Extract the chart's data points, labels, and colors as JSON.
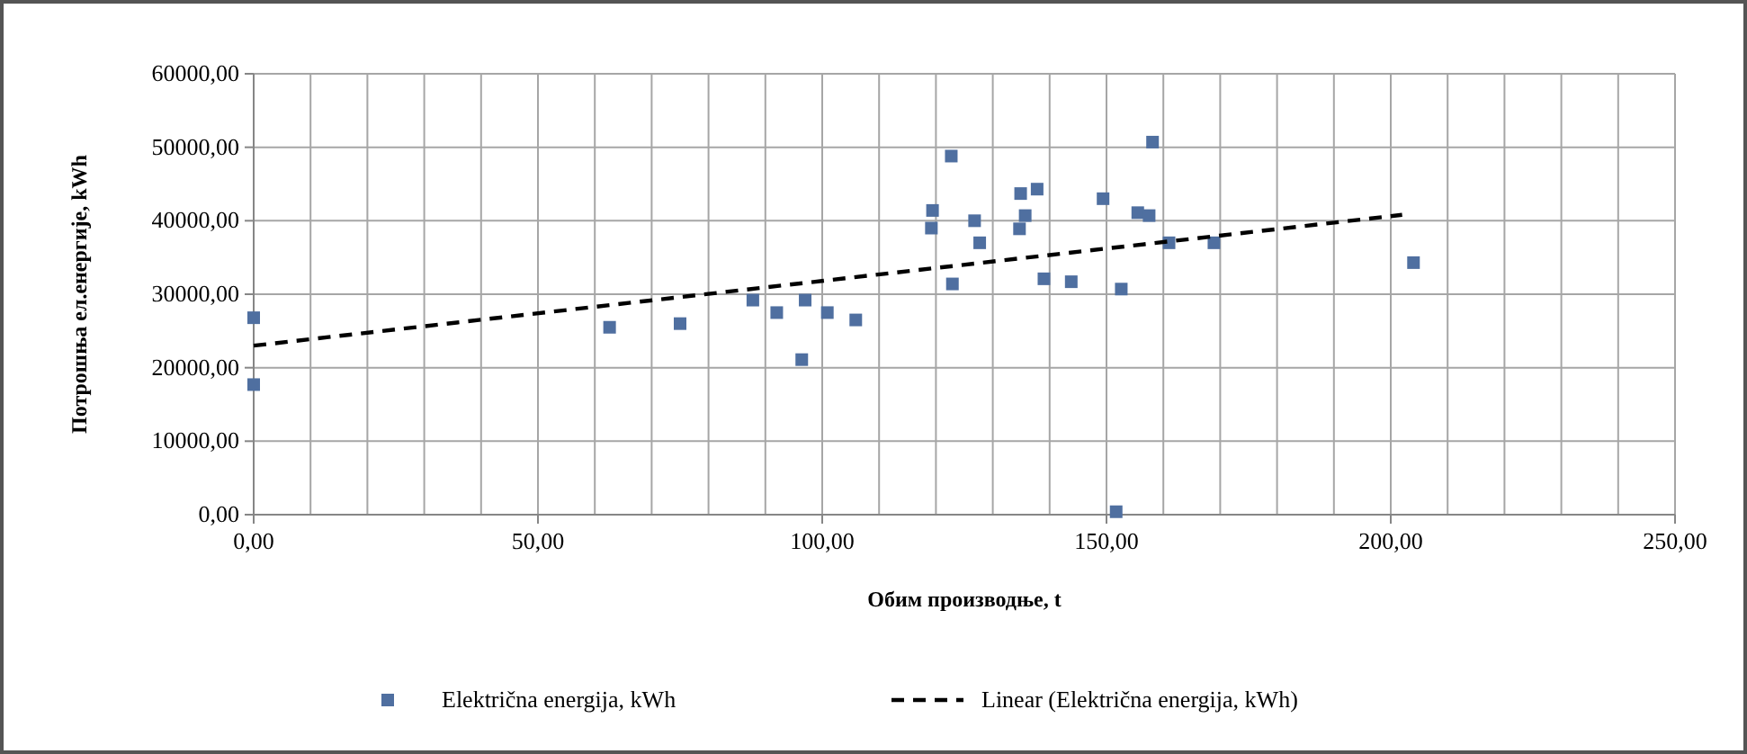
{
  "chart_data": {
    "type": "scatter",
    "xlabel": "Обим производње, t",
    "ylabel": "Потрошња ел.енергије, kWh",
    "xlim": [
      0,
      250
    ],
    "ylim": [
      0,
      60000
    ],
    "xticks": [
      {
        "value": 0,
        "label": "0,00"
      },
      {
        "value": 50,
        "label": "50,00"
      },
      {
        "value": 100,
        "label": "100,00"
      },
      {
        "value": 150,
        "label": "150,00"
      },
      {
        "value": 200,
        "label": "200,00"
      },
      {
        "value": 250,
        "label": "250,00"
      }
    ],
    "yticks": [
      {
        "value": 0,
        "label": "0,00"
      },
      {
        "value": 10000,
        "label": "10000,00"
      },
      {
        "value": 20000,
        "label": "20000,00"
      },
      {
        "value": 30000,
        "label": "30000,00"
      },
      {
        "value": 40000,
        "label": "40000,00"
      },
      {
        "value": 50000,
        "label": "50000,00"
      },
      {
        "value": 60000,
        "label": "60000,00"
      }
    ],
    "grid": true,
    "legend": "bottom",
    "marker": "square",
    "series": [
      {
        "name": "Električna energija, kWh",
        "color": "#4f6fa0",
        "x": [
          0,
          0,
          62.6,
          75,
          87.8,
          92,
          97,
          96.4,
          100.9,
          105.9,
          119.2,
          119.4,
          122.7,
          122.9,
          126.8,
          127.7,
          134.9,
          137.8,
          135.7,
          134.7,
          139,
          143.8,
          149.4,
          152.6,
          151.7,
          158.1,
          155.5,
          157.5,
          161,
          168.9,
          204
        ],
        "values": [
          26800,
          17700,
          25500,
          26000,
          29200,
          27500,
          29200,
          21100,
          27500,
          26500,
          39000,
          41400,
          48800,
          31400,
          40000,
          37000,
          43700,
          44300,
          40700,
          38900,
          32100,
          31700,
          43000,
          30700,
          400,
          50700,
          41100,
          40700,
          37000,
          37000,
          34300
        ]
      },
      {
        "name": "Linear (Električna energija, kWh)",
        "type": "line",
        "color": "#000000",
        "line_style": "dashed",
        "marker": "none",
        "x": [
          0,
          202
        ],
        "values": [
          23000,
          40800
        ]
      }
    ]
  }
}
